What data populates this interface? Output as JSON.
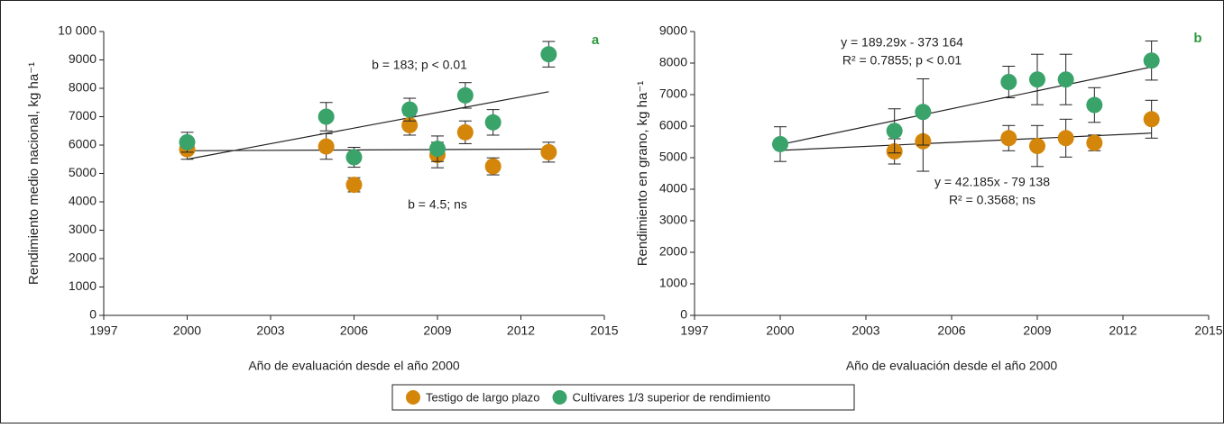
{
  "chart_data": [
    {
      "type": "scatter",
      "panel": "a",
      "xlabel": "Año de evaluación desde el año 2000",
      "ylabel": "Rendimiento medio nacional, kg ha⁻¹",
      "xlim": [
        1997,
        2015
      ],
      "xticks": [
        1997,
        2000,
        2003,
        2006,
        2009,
        2012,
        2015
      ],
      "ylim": [
        0,
        10000
      ],
      "yticks": [
        0,
        1000,
        2000,
        3000,
        4000,
        5000,
        6000,
        7000,
        8000,
        9000,
        {
          "value": 10000,
          "label": "10 000"
        }
      ],
      "series": [
        {
          "name": "Testigo de largo plazo",
          "color": "#d4860b",
          "x": [
            2000,
            2005,
            2006,
            2008,
            2009,
            2010,
            2011,
            2013
          ],
          "values": [
            5850,
            5950,
            4600,
            6700,
            5650,
            6450,
            5250,
            5750
          ],
          "errors": [
            350,
            450,
            250,
            350,
            450,
            400,
            300,
            350
          ]
        },
        {
          "name": "Cultivares 1/3 superior de rendimiento",
          "color": "#3aa36a",
          "x": [
            2000,
            2005,
            2006,
            2008,
            2009,
            2010,
            2011,
            2013
          ],
          "values": [
            6100,
            7000,
            5570,
            7250,
            5870,
            7750,
            6800,
            9200
          ],
          "errors": [
            350,
            500,
            350,
            400,
            450,
            450,
            450,
            450
          ]
        }
      ],
      "trendlines": [
        {
          "x": [
            2000,
            2013
          ],
          "values": [
            5800,
            5859
          ]
        },
        {
          "x": [
            2000,
            2013
          ],
          "values": [
            5500,
            7880
          ]
        }
      ],
      "annotations": [
        "b = 183; p < 0.01",
        "b = 4.5; ns"
      ]
    },
    {
      "type": "scatter",
      "panel": "b",
      "xlabel": "Año de evaluación desde el año 2000",
      "ylabel": "Rendimiento en grano, kg ha⁻¹",
      "xlim": [
        1997,
        2015
      ],
      "xticks": [
        1997,
        2000,
        2003,
        2006,
        2009,
        2012,
        2015
      ],
      "ylim": [
        0,
        9000
      ],
      "yticks": [
        0,
        1000,
        2000,
        3000,
        4000,
        5000,
        6000,
        7000,
        8000,
        9000
      ],
      "series": [
        {
          "color": "#d4860b",
          "x": [
            2004,
            2005,
            2008,
            2009,
            2010,
            2011,
            2013
          ],
          "values": [
            5200,
            5520,
            5620,
            5370,
            5620,
            5470,
            6220
          ],
          "errors": [
            400,
            950,
            400,
            650,
            600,
            250,
            600
          ]
        },
        {
          "color": "#3aa36a",
          "x": [
            2000,
            2004,
            2005,
            2008,
            2009,
            2010,
            2011,
            2013
          ],
          "values": [
            5430,
            5850,
            6450,
            7400,
            7480,
            7480,
            6670,
            8080
          ],
          "errors": [
            550,
            700,
            1050,
            500,
            800,
            800,
            550,
            620
          ]
        }
      ],
      "trendlines": [
        {
          "x": [
            2000,
            2013
          ],
          "values": [
            5232,
            5780
          ]
        },
        {
          "x": [
            2000,
            2013
          ],
          "values": [
            5416,
            7877
          ]
        }
      ],
      "annotations": [
        "y = 189.29x - 373 164",
        "R² = 0.7855; p < 0.01",
        "y = 42.185x - 79 138",
        "R² = 0.3568; ns"
      ]
    }
  ]
}
